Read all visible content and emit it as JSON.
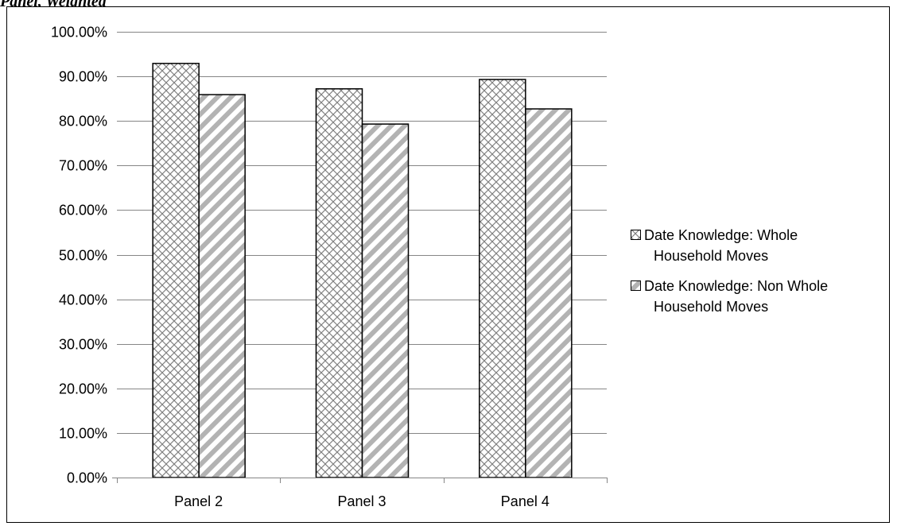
{
  "caption": "Panel, Weighted",
  "chart_data": {
    "type": "bar",
    "title": "",
    "xlabel": "",
    "ylabel": "",
    "categories": [
      "Panel 2",
      "Panel 3",
      "Panel 4"
    ],
    "series": [
      {
        "name": "Date Knowledge: Whole Household Moves",
        "values": [
          92.9,
          87.2,
          89.3
        ],
        "pattern": "crosshatch"
      },
      {
        "name": "Date Knowledge: Non Whole Household Moves",
        "values": [
          85.9,
          79.3,
          82.7
        ],
        "pattern": "diagonal-stripe"
      }
    ],
    "ylim": [
      0,
      100
    ],
    "yticks": [
      0,
      10,
      20,
      30,
      40,
      50,
      60,
      70,
      80,
      90,
      100
    ],
    "ytick_labels": [
      "0.00%",
      "10.00%",
      "20.00%",
      "30.00%",
      "40.00%",
      "50.00%",
      "60.00%",
      "70.00%",
      "80.00%",
      "90.00%",
      "100.00%"
    ],
    "grid": true,
    "legend_position": "right",
    "colors": {
      "gridline": "#868686",
      "bar_outline": "#000000",
      "pattern_ink": "#7f7f7f",
      "stripe_ink": "#b3b3b3"
    }
  }
}
